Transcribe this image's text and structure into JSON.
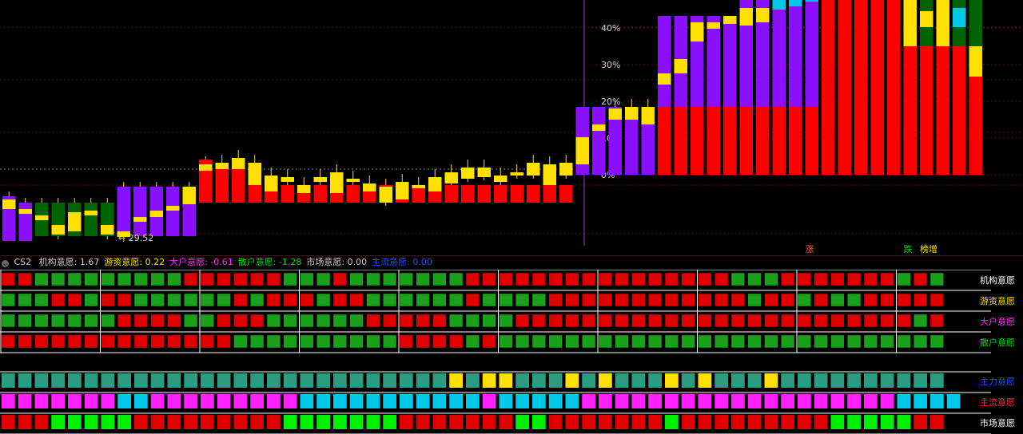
{
  "colors": {
    "up": "#ff0000",
    "down": "#006400",
    "purple": "#8a10ff",
    "yellow": "#ffe000",
    "cyan": "#00c8e8",
    "grid_green": "#1aa01a",
    "grid_red": "#e00000",
    "teal": "#2d9b80",
    "magenta": "#ff20ff",
    "lime": "#00f000"
  },
  "chart_data": {
    "type": "candlestick",
    "percent_axis": {
      "labels": [
        "40%",
        "30%",
        "20%",
        "10%",
        "0%"
      ],
      "values": [
        40,
        30,
        20,
        10,
        0
      ]
    },
    "min_label": "← 29.52",
    "signal_labels": [
      {
        "text": "涨",
        "color": "#ff5050",
        "column": 49
      },
      {
        "text": "跌",
        "color": "#00e000",
        "column": 55
      },
      {
        "text": "榜增",
        "color": "#ffe000",
        "column": 56
      }
    ]
  },
  "indicator": {
    "name": "CS2",
    "items": [
      {
        "label": "机构意愿: 1.67",
        "color": "#cccccc"
      },
      {
        "label": "游资意愿: 0.22",
        "color": "#ffe000"
      },
      {
        "label": "大户意愿: -0.61",
        "color": "#ff30ff"
      },
      {
        "label": "散户意愿: -1.28",
        "color": "#00e000"
      },
      {
        "label": "市场意愿: 0.00",
        "color": "#cccccc"
      },
      {
        "label": "主流意愿: 0.00",
        "color": "#2a4cff"
      }
    ]
  },
  "grid_rows": [
    {
      "label": "机构意愿",
      "color": "#ffffff",
      "pattern": "RRGGGGGGGGGRRRRRRGGGRGGGGGGGRRRRRRRRRRRRRRRRGGGRRRRRRRGRG"
    },
    {
      "label": "游资意愿",
      "color": "#ffe000",
      "pattern": "GGGRRGRRGGGGGGRGRRRGRRGGGGGGRGGGGRRRRRRRRRRRRGRRGRGGRRRRR"
    },
    {
      "label": "大户意愿",
      "color": "#ff30ff",
      "pattern": "GGGGGGGRRRRGGRRRGGGGGGRRRRRGGGGRRRRRRRRRRRRRRRRRRRRRRRRGR"
    },
    {
      "label": "散户意愿",
      "color": "#00e000",
      "pattern": "RRRRRRRRRRRRRRGGGGGGGGGGRRRRGRGGGGGGGGGGGGGGGGGGGGGGGGGGG"
    }
  ],
  "signal_rows": [
    {
      "label": "主力意愿",
      "color": "#2a4cff",
      "pattern": "TTTTTTTTTTTTTTTTTTTTTTTTTTTYTYYTTTYTYTTTYTYTTTYTTTTTTTTTT"
    },
    {
      "label": "主流意愿",
      "color": "#ff3030",
      "pattern": "MMMMMMMCCMMMMMMMMMCCCCCCCCCCCMCCCCCMMMMMMMMMMMMMMMMMMMCCCC"
    },
    {
      "label": "市场意愿",
      "color": "#ffffff",
      "pattern": "RRRLLLLLRRRRRRRRRLLLLLLLRRRRRRRLLRRRRRRRLRRRRRRRRRLLLLLRR"
    }
  ]
}
